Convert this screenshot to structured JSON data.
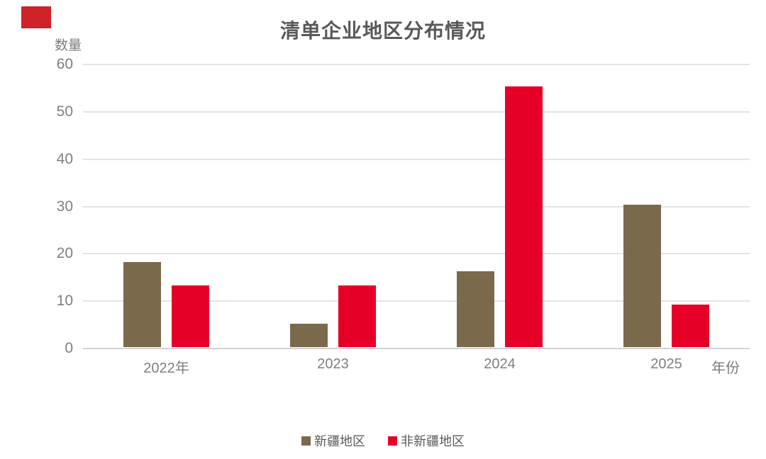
{
  "chart_data": {
    "type": "bar",
    "title": "清单企业地区分布情况",
    "xlabel": "年份",
    "ylabel": "数量",
    "categories": [
      "2022年",
      "2023",
      "2024",
      "2025"
    ],
    "series": [
      {
        "name": "新疆地区",
        "color": "#7b694c",
        "values": [
          18,
          5,
          16,
          30
        ]
      },
      {
        "name": "非新疆地区",
        "color": "#e60028",
        "values": [
          13,
          13,
          55,
          9
        ]
      }
    ],
    "ylim": [
      0,
      60
    ],
    "yticks": [
      0,
      10,
      20,
      30,
      40,
      50,
      60
    ],
    "grid": true,
    "legend_position": "bottom"
  },
  "colors": {
    "corner_mark": "#ce2329",
    "gridline": "#e4e4e4",
    "axis_line": "#d2d2d2",
    "tick_text": "#808080",
    "title_text": "#595959"
  }
}
